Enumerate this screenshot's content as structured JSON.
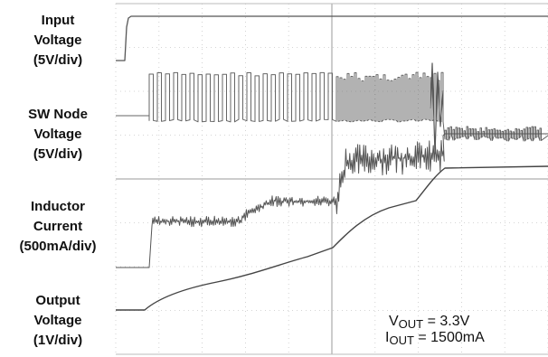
{
  "chart_data": {
    "type": "line",
    "title": "",
    "xlabel": "",
    "ylabel": "",
    "grid": true,
    "grid_divisions": {
      "x": 10,
      "y": 8
    },
    "channels": [
      {
        "label_lines": [
          "Input",
          "Voltage",
          "(5V/div)"
        ],
        "scale": "5V/div",
        "description": "steps from 0 to ~5V near start, then flat"
      },
      {
        "label_lines": [
          "SW Node",
          "Voltage",
          "(5V/div)"
        ],
        "scale": "5V/div",
        "description": "switching pulses begin after input rises; dense switching until output reaches regulation, then settles"
      },
      {
        "label_lines": [
          "Inductor",
          "Current",
          "(500mA/div)"
        ],
        "scale": "500mA/div",
        "description": "stepwise ramp with ripple, rising through soft-start, then flat steady-state"
      },
      {
        "label_lines": [
          "Output",
          "Voltage",
          "(1V/div)"
        ],
        "scale": "1V/div",
        "description": "smooth soft-start ramp to 3.3V"
      }
    ],
    "annotations": {
      "vout": {
        "symbol": "V",
        "subscript": "OUT",
        "value": "= 3.3V"
      },
      "iout": {
        "symbol": "I",
        "subscript": "OUT",
        "value": "= 1500mA"
      }
    },
    "trace_color": "#555555",
    "grid_color": "#c8c8c8"
  }
}
